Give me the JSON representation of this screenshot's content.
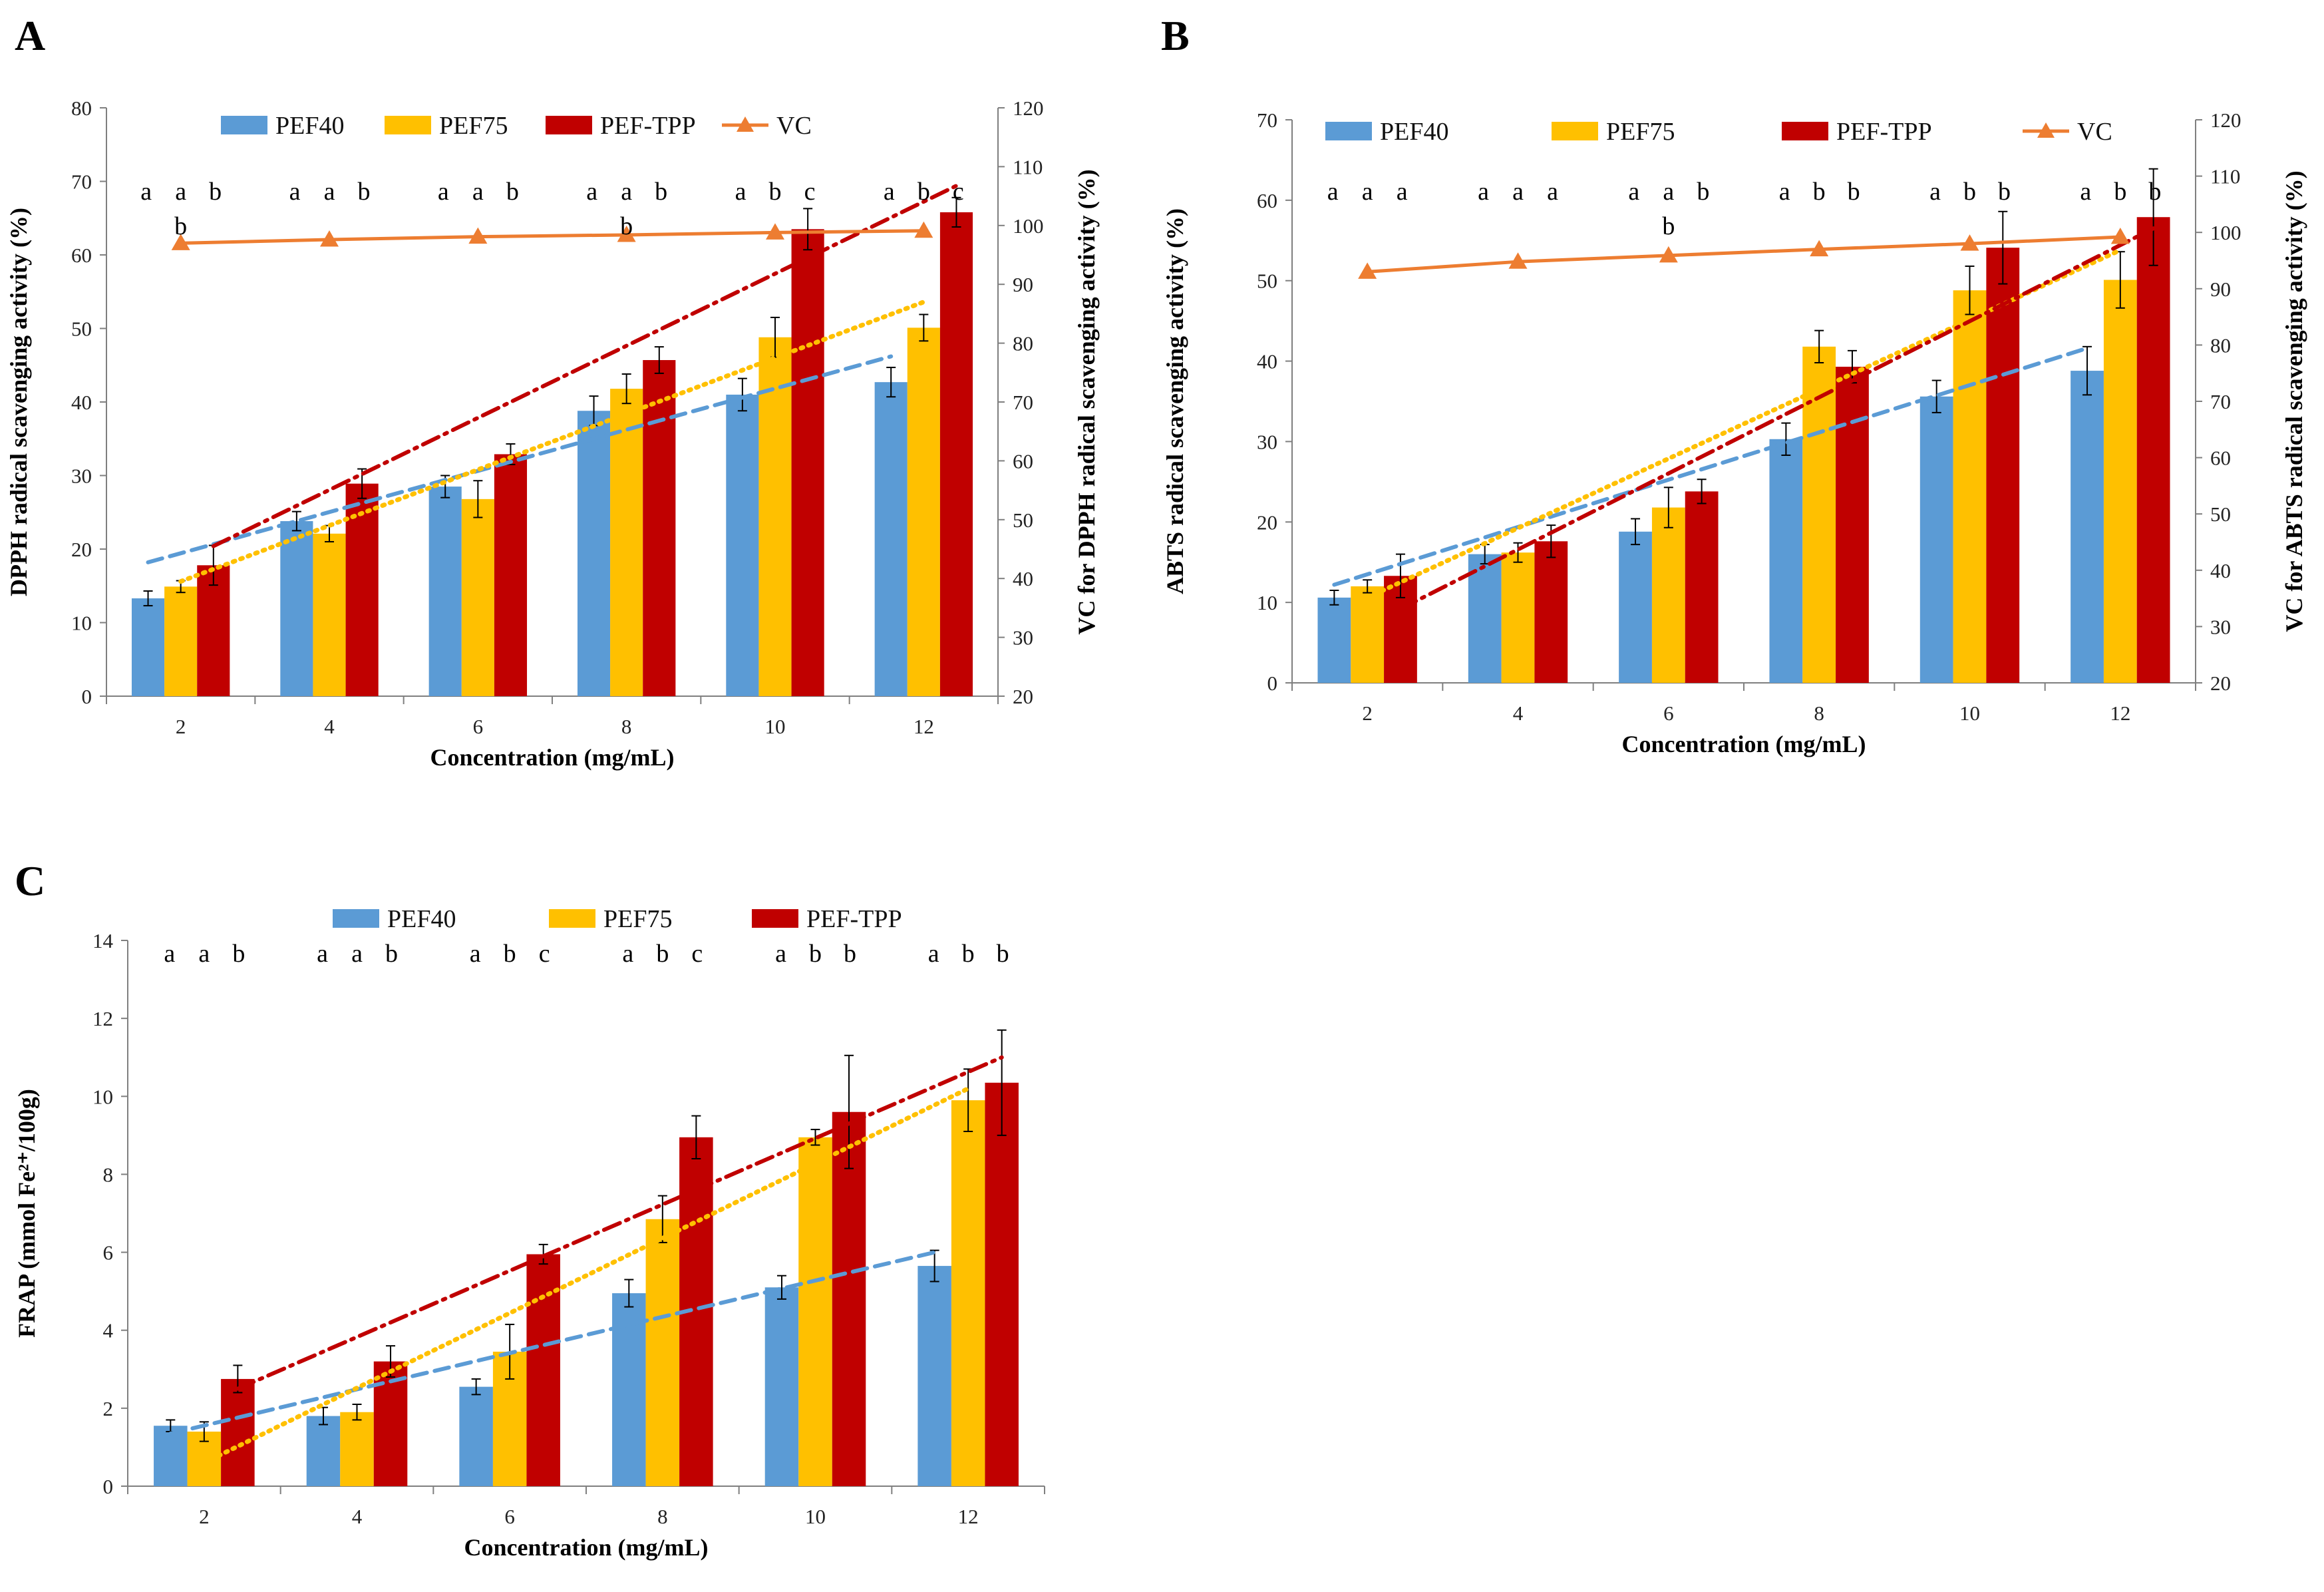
{
  "colors": {
    "PEF40": "#5b9bd5",
    "PEF75": "#ffc000",
    "PEF-TPP": "#c00000",
    "VC": "#ed7d31",
    "axis": "#7f7f7f",
    "errbar": "#000000"
  },
  "chart_data": [
    {
      "panel": "A",
      "type": "bar",
      "categories": [
        "2",
        "4",
        "6",
        "8",
        "10",
        "12"
      ],
      "xlabel": "Concentration (mg/mL)",
      "ylabel": "DPPH radical scavenging activity (%)",
      "y2label": "VC for DPPH radical scavenging activity (%)",
      "ylim": [
        0,
        80
      ],
      "ystep": 10,
      "y2lim": [
        20,
        120
      ],
      "y2step": 10,
      "legend_position": "top",
      "legend": [
        "PEF40",
        "PEF75",
        "PEF-TPP",
        "VC"
      ],
      "series": [
        {
          "name": "PEF40",
          "values": [
            13.3,
            23.8,
            28.5,
            38.8,
            41.0,
            42.7
          ],
          "errors": [
            1.0,
            1.3,
            1.5,
            2.0,
            2.2,
            2.0
          ]
        },
        {
          "name": "PEF75",
          "values": [
            14.9,
            22.1,
            26.8,
            41.8,
            48.8,
            50.1
          ],
          "errors": [
            0.8,
            1.1,
            2.5,
            2.0,
            2.7,
            1.8
          ]
        },
        {
          "name": "PEF-TPP",
          "values": [
            17.8,
            28.9,
            32.9,
            45.7,
            63.5,
            65.8
          ],
          "errors": [
            2.7,
            2.0,
            1.4,
            1.8,
            2.8,
            2.0
          ]
        }
      ],
      "line_series": {
        "name": "VC",
        "axis": "secondary",
        "values": [
          97.0,
          97.6,
          98.1,
          98.4,
          98.8,
          99.1
        ]
      },
      "trendlines": [
        {
          "series": "PEF40",
          "style": "dashed",
          "from": 18.2,
          "to": 46.2
        },
        {
          "series": "PEF75",
          "style": "dotted",
          "from": 15.6,
          "to": 53.6
        },
        {
          "series": "PEF-TPP",
          "style": "dashdot",
          "from": 20.4,
          "to": 69.4
        }
      ],
      "significance": [
        {
          "top": [
            "a",
            "a",
            "b"
          ],
          "under": [
            "",
            "b",
            ""
          ]
        },
        {
          "top": [
            "a",
            "a",
            "b"
          ],
          "under": [
            "",
            "",
            ""
          ]
        },
        {
          "top": [
            "a",
            "a",
            "b"
          ],
          "under": [
            "",
            "",
            ""
          ]
        },
        {
          "top": [
            "a",
            "a",
            "b"
          ],
          "under": [
            "",
            "b",
            ""
          ]
        },
        {
          "top": [
            "a",
            "b",
            "c"
          ],
          "under": [
            "",
            "",
            ""
          ]
        },
        {
          "top": [
            "a",
            "b",
            "c"
          ],
          "under": [
            "",
            "",
            ""
          ]
        }
      ]
    },
    {
      "panel": "B",
      "type": "bar",
      "categories": [
        "2",
        "4",
        "6",
        "8",
        "10",
        "12"
      ],
      "xlabel": "Concentration (mg/mL)",
      "ylabel": "ABTS radical scavenging activity (%)",
      "y2label": "VC for ABTS radical scavenging activity (%)",
      "ylim": [
        0,
        70
      ],
      "ystep": 10,
      "y2lim": [
        20,
        120
      ],
      "y2step": 10,
      "legend_position": "top",
      "legend": [
        "PEF40",
        "PEF75",
        "PEF-TPP",
        "VC"
      ],
      "series": [
        {
          "name": "PEF40",
          "values": [
            10.6,
            16.0,
            18.8,
            30.3,
            35.6,
            38.8
          ],
          "errors": [
            0.9,
            1.2,
            1.6,
            2.0,
            2.0,
            3.0
          ]
        },
        {
          "name": "PEF75",
          "values": [
            12.0,
            16.2,
            21.8,
            41.8,
            48.8,
            50.1
          ],
          "errors": [
            0.8,
            1.2,
            2.5,
            2.0,
            3.0,
            3.5
          ]
        },
        {
          "name": "PEF-TPP",
          "values": [
            13.3,
            17.6,
            23.8,
            39.3,
            54.1,
            57.9
          ],
          "errors": [
            2.7,
            2.0,
            1.5,
            2.0,
            4.5,
            6.0
          ]
        }
      ],
      "line_series": {
        "name": "VC",
        "axis": "secondary",
        "values": [
          93.0,
          94.8,
          95.9,
          97.0,
          98.0,
          99.2
        ]
      },
      "trendlines": [
        {
          "series": "PEF40",
          "style": "dashed",
          "from": 12.2,
          "to": 41.6
        },
        {
          "series": "PEF75",
          "style": "dotted",
          "from": 10.6,
          "to": 53.8
        },
        {
          "series": "PEF-TPP",
          "style": "dashdot",
          "from": 9.2,
          "to": 56.5
        }
      ],
      "significance": [
        {
          "top": [
            "a",
            "a",
            "a"
          ],
          "under": [
            "",
            "",
            ""
          ]
        },
        {
          "top": [
            "a",
            "a",
            "a"
          ],
          "under": [
            "",
            "",
            ""
          ]
        },
        {
          "top": [
            "a",
            "a",
            "b"
          ],
          "under": [
            "",
            "b",
            ""
          ]
        },
        {
          "top": [
            "a",
            "b",
            "b"
          ],
          "under": [
            "",
            "",
            ""
          ]
        },
        {
          "top": [
            "a",
            "b",
            "b"
          ],
          "under": [
            "",
            "",
            ""
          ]
        },
        {
          "top": [
            "a",
            "b",
            "b"
          ],
          "under": [
            "",
            "",
            ""
          ]
        }
      ]
    },
    {
      "panel": "C",
      "type": "bar",
      "categories": [
        "2",
        "4",
        "6",
        "8",
        "10",
        "12"
      ],
      "xlabel": "Concentration (mg/mL)",
      "ylabel": "FRAP (mmol Fe²⁺/100g)",
      "ylim": [
        0,
        14
      ],
      "ystep": 2,
      "legend_position": "top",
      "legend": [
        "PEF40",
        "PEF75",
        "PEF-TPP"
      ],
      "series": [
        {
          "name": "PEF40",
          "values": [
            1.55,
            1.8,
            2.55,
            4.95,
            5.1,
            5.65
          ],
          "errors": [
            0.15,
            0.22,
            0.2,
            0.35,
            0.3,
            0.4
          ]
        },
        {
          "name": "PEF75",
          "values": [
            1.4,
            1.9,
            3.45,
            6.85,
            8.95,
            9.9
          ],
          "errors": [
            0.25,
            0.2,
            0.7,
            0.6,
            0.2,
            0.8
          ]
        },
        {
          "name": "PEF-TPP",
          "values": [
            2.75,
            3.2,
            5.95,
            8.95,
            9.6,
            10.35
          ],
          "errors": [
            0.35,
            0.4,
            0.25,
            0.55,
            1.45,
            1.35
          ]
        }
      ],
      "trendlines": [
        {
          "series": "PEF40",
          "style": "dashed",
          "from": 1.35,
          "to": 6.0
        },
        {
          "series": "PEF75",
          "style": "dotted",
          "from": 0.6,
          "to": 10.2
        },
        {
          "series": "PEF-TPP",
          "style": "dashdot",
          "from": 2.5,
          "to": 11.0
        }
      ],
      "significance": [
        {
          "top": [
            "a",
            "a",
            "b"
          ],
          "under": [
            "",
            "",
            ""
          ]
        },
        {
          "top": [
            "a",
            "a",
            "b"
          ],
          "under": [
            "",
            "",
            ""
          ]
        },
        {
          "top": [
            "a",
            "b",
            "c"
          ],
          "under": [
            "",
            "",
            ""
          ]
        },
        {
          "top": [
            "a",
            "b",
            "c"
          ],
          "under": [
            "",
            "",
            ""
          ]
        },
        {
          "top": [
            "a",
            "b",
            "b"
          ],
          "under": [
            "",
            "",
            ""
          ]
        },
        {
          "top": [
            "a",
            "b",
            "b"
          ],
          "under": [
            "",
            "",
            ""
          ]
        }
      ]
    }
  ]
}
